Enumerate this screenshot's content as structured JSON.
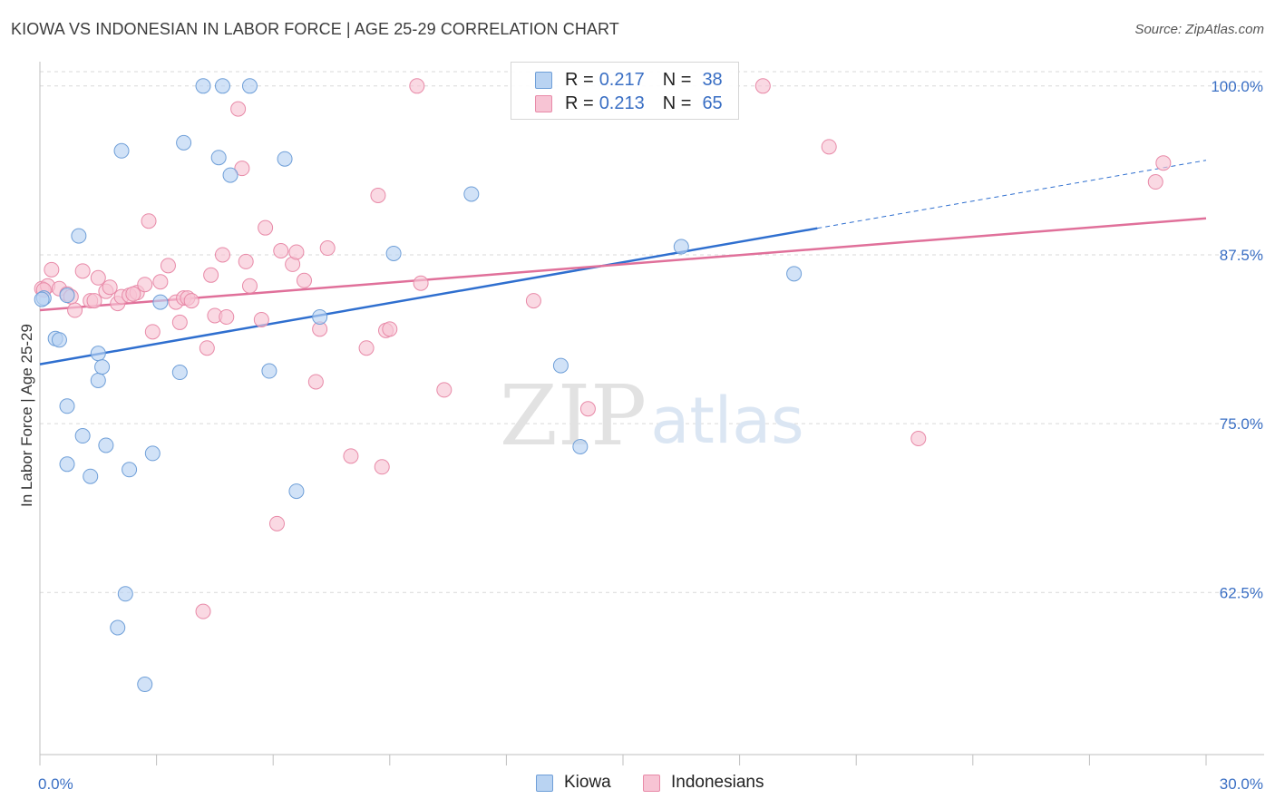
{
  "title": "KIOWA VS INDONESIAN IN LABOR FORCE | AGE 25-29 CORRELATION CHART",
  "source": "Source: ZipAtlas.com",
  "watermark": {
    "zip": "ZIP",
    "atlas": "atlas"
  },
  "legend": {
    "kiowa": {
      "r_label": "R =",
      "r_value": "0.217",
      "n_label": "N =",
      "n_value": "38"
    },
    "indonesians": {
      "r_label": "R =",
      "r_value": "0.213",
      "n_label": "N =",
      "n_value": "65"
    }
  },
  "colors": {
    "kiowa_fill": "#b9d3f2",
    "kiowa_stroke": "#6f9fd8",
    "kiowa_line": "#2f6fcf",
    "indo_fill": "#f7c4d4",
    "indo_stroke": "#e88aa8",
    "indo_line": "#e0709a",
    "tick_label": "#3a6fc4",
    "grid": "#d9d9d9"
  },
  "chart_data": {
    "type": "scatter",
    "title": "KIOWA VS INDONESIAN IN LABOR FORCE | AGE 25-29 CORRELATION CHART",
    "xlabel": "",
    "ylabel": "In Labor Force | Age 25-29",
    "xlim": [
      0,
      30
    ],
    "ylim": [
      50.5,
      101.8
    ],
    "x_tick_labels": [
      "0.0%",
      "30.0%"
    ],
    "y_ticks": [
      62.5,
      75.0,
      87.5,
      100.0
    ],
    "y_tick_labels": [
      "62.5%",
      "75.0%",
      "87.5%",
      "100.0%"
    ],
    "grid": true,
    "legend_position": "top-center",
    "series": [
      {
        "name": "Kiowa",
        "points": [
          [
            0.1,
            84.3
          ],
          [
            0.4,
            81.3
          ],
          [
            0.5,
            81.2
          ],
          [
            0.7,
            76.3
          ],
          [
            0.7,
            84.5
          ],
          [
            1.0,
            88.9
          ],
          [
            1.1,
            74.1
          ],
          [
            0.7,
            72.0
          ],
          [
            1.3,
            71.1
          ],
          [
            1.5,
            78.2
          ],
          [
            1.5,
            80.2
          ],
          [
            1.6,
            79.2
          ],
          [
            1.7,
            73.4
          ],
          [
            2.1,
            95.2
          ],
          [
            2.2,
            62.4
          ],
          [
            2.0,
            59.9
          ],
          [
            2.3,
            71.6
          ],
          [
            2.7,
            55.7
          ],
          [
            2.9,
            72.8
          ],
          [
            3.1,
            84.0
          ],
          [
            3.6,
            78.8
          ],
          [
            3.7,
            95.8
          ],
          [
            4.2,
            100.0
          ],
          [
            4.6,
            94.7
          ],
          [
            4.7,
            100.0
          ],
          [
            4.9,
            93.4
          ],
          [
            5.4,
            100.0
          ],
          [
            5.9,
            78.9
          ],
          [
            6.3,
            94.6
          ],
          [
            6.6,
            70.0
          ],
          [
            7.2,
            82.9
          ],
          [
            9.1,
            87.6
          ],
          [
            11.1,
            92.0
          ],
          [
            13.4,
            79.3
          ],
          [
            13.9,
            73.3
          ],
          [
            16.5,
            88.1
          ],
          [
            19.4,
            86.1
          ],
          [
            0.05,
            84.2
          ]
        ]
      },
      {
        "name": "Indonesians",
        "points": [
          [
            0.05,
            85.0
          ],
          [
            0.2,
            85.2
          ],
          [
            0.3,
            86.4
          ],
          [
            0.5,
            85.0
          ],
          [
            0.7,
            84.6
          ],
          [
            0.9,
            83.4
          ],
          [
            1.1,
            86.3
          ],
          [
            1.3,
            84.1
          ],
          [
            1.4,
            84.1
          ],
          [
            1.5,
            85.8
          ],
          [
            1.7,
            84.8
          ],
          [
            1.8,
            85.1
          ],
          [
            2.0,
            83.9
          ],
          [
            2.1,
            84.4
          ],
          [
            2.3,
            84.5
          ],
          [
            2.5,
            84.7
          ],
          [
            2.7,
            85.3
          ],
          [
            2.8,
            90.0
          ],
          [
            2.9,
            81.8
          ],
          [
            3.1,
            85.5
          ],
          [
            3.3,
            86.7
          ],
          [
            3.5,
            84.0
          ],
          [
            3.6,
            82.5
          ],
          [
            3.7,
            84.3
          ],
          [
            3.8,
            84.3
          ],
          [
            4.3,
            80.6
          ],
          [
            4.4,
            86.0
          ],
          [
            4.5,
            83.0
          ],
          [
            4.7,
            87.5
          ],
          [
            4.8,
            82.9
          ],
          [
            5.1,
            98.3
          ],
          [
            5.2,
            93.9
          ],
          [
            5.3,
            87.0
          ],
          [
            5.4,
            85.2
          ],
          [
            5.7,
            82.7
          ],
          [
            5.8,
            89.5
          ],
          [
            6.1,
            67.6
          ],
          [
            6.2,
            87.8
          ],
          [
            6.5,
            86.8
          ],
          [
            6.6,
            87.7
          ],
          [
            6.8,
            85.6
          ],
          [
            7.1,
            78.1
          ],
          [
            7.2,
            82.0
          ],
          [
            7.4,
            88.0
          ],
          [
            8.0,
            72.6
          ],
          [
            8.4,
            80.6
          ],
          [
            8.7,
            91.9
          ],
          [
            8.8,
            71.8
          ],
          [
            8.9,
            81.9
          ],
          [
            9.0,
            82.0
          ],
          [
            9.7,
            100.0
          ],
          [
            4.2,
            61.1
          ],
          [
            9.8,
            85.4
          ],
          [
            10.4,
            77.5
          ],
          [
            12.7,
            84.1
          ],
          [
            14.1,
            76.1
          ],
          [
            18.6,
            100.0
          ],
          [
            20.3,
            95.5
          ],
          [
            22.6,
            73.9
          ],
          [
            28.7,
            92.9
          ],
          [
            28.9,
            94.3
          ],
          [
            0.1,
            84.9
          ],
          [
            0.8,
            84.4
          ],
          [
            2.4,
            84.6
          ],
          [
            3.9,
            84.1
          ]
        ]
      }
    ],
    "trendlines": [
      {
        "series": "Kiowa",
        "x_solid": [
          0,
          20.0
        ],
        "x_dashed": [
          20.0,
          30.0
        ],
        "y_at_0": 79.4,
        "y_at_30": 94.5
      },
      {
        "series": "Indonesians",
        "x_solid": [
          0,
          30.0
        ],
        "y_at_0": 83.4,
        "y_at_30": 90.2
      }
    ]
  },
  "bottom_legend": {
    "kiowa": "Kiowa",
    "indonesians": "Indonesians"
  }
}
